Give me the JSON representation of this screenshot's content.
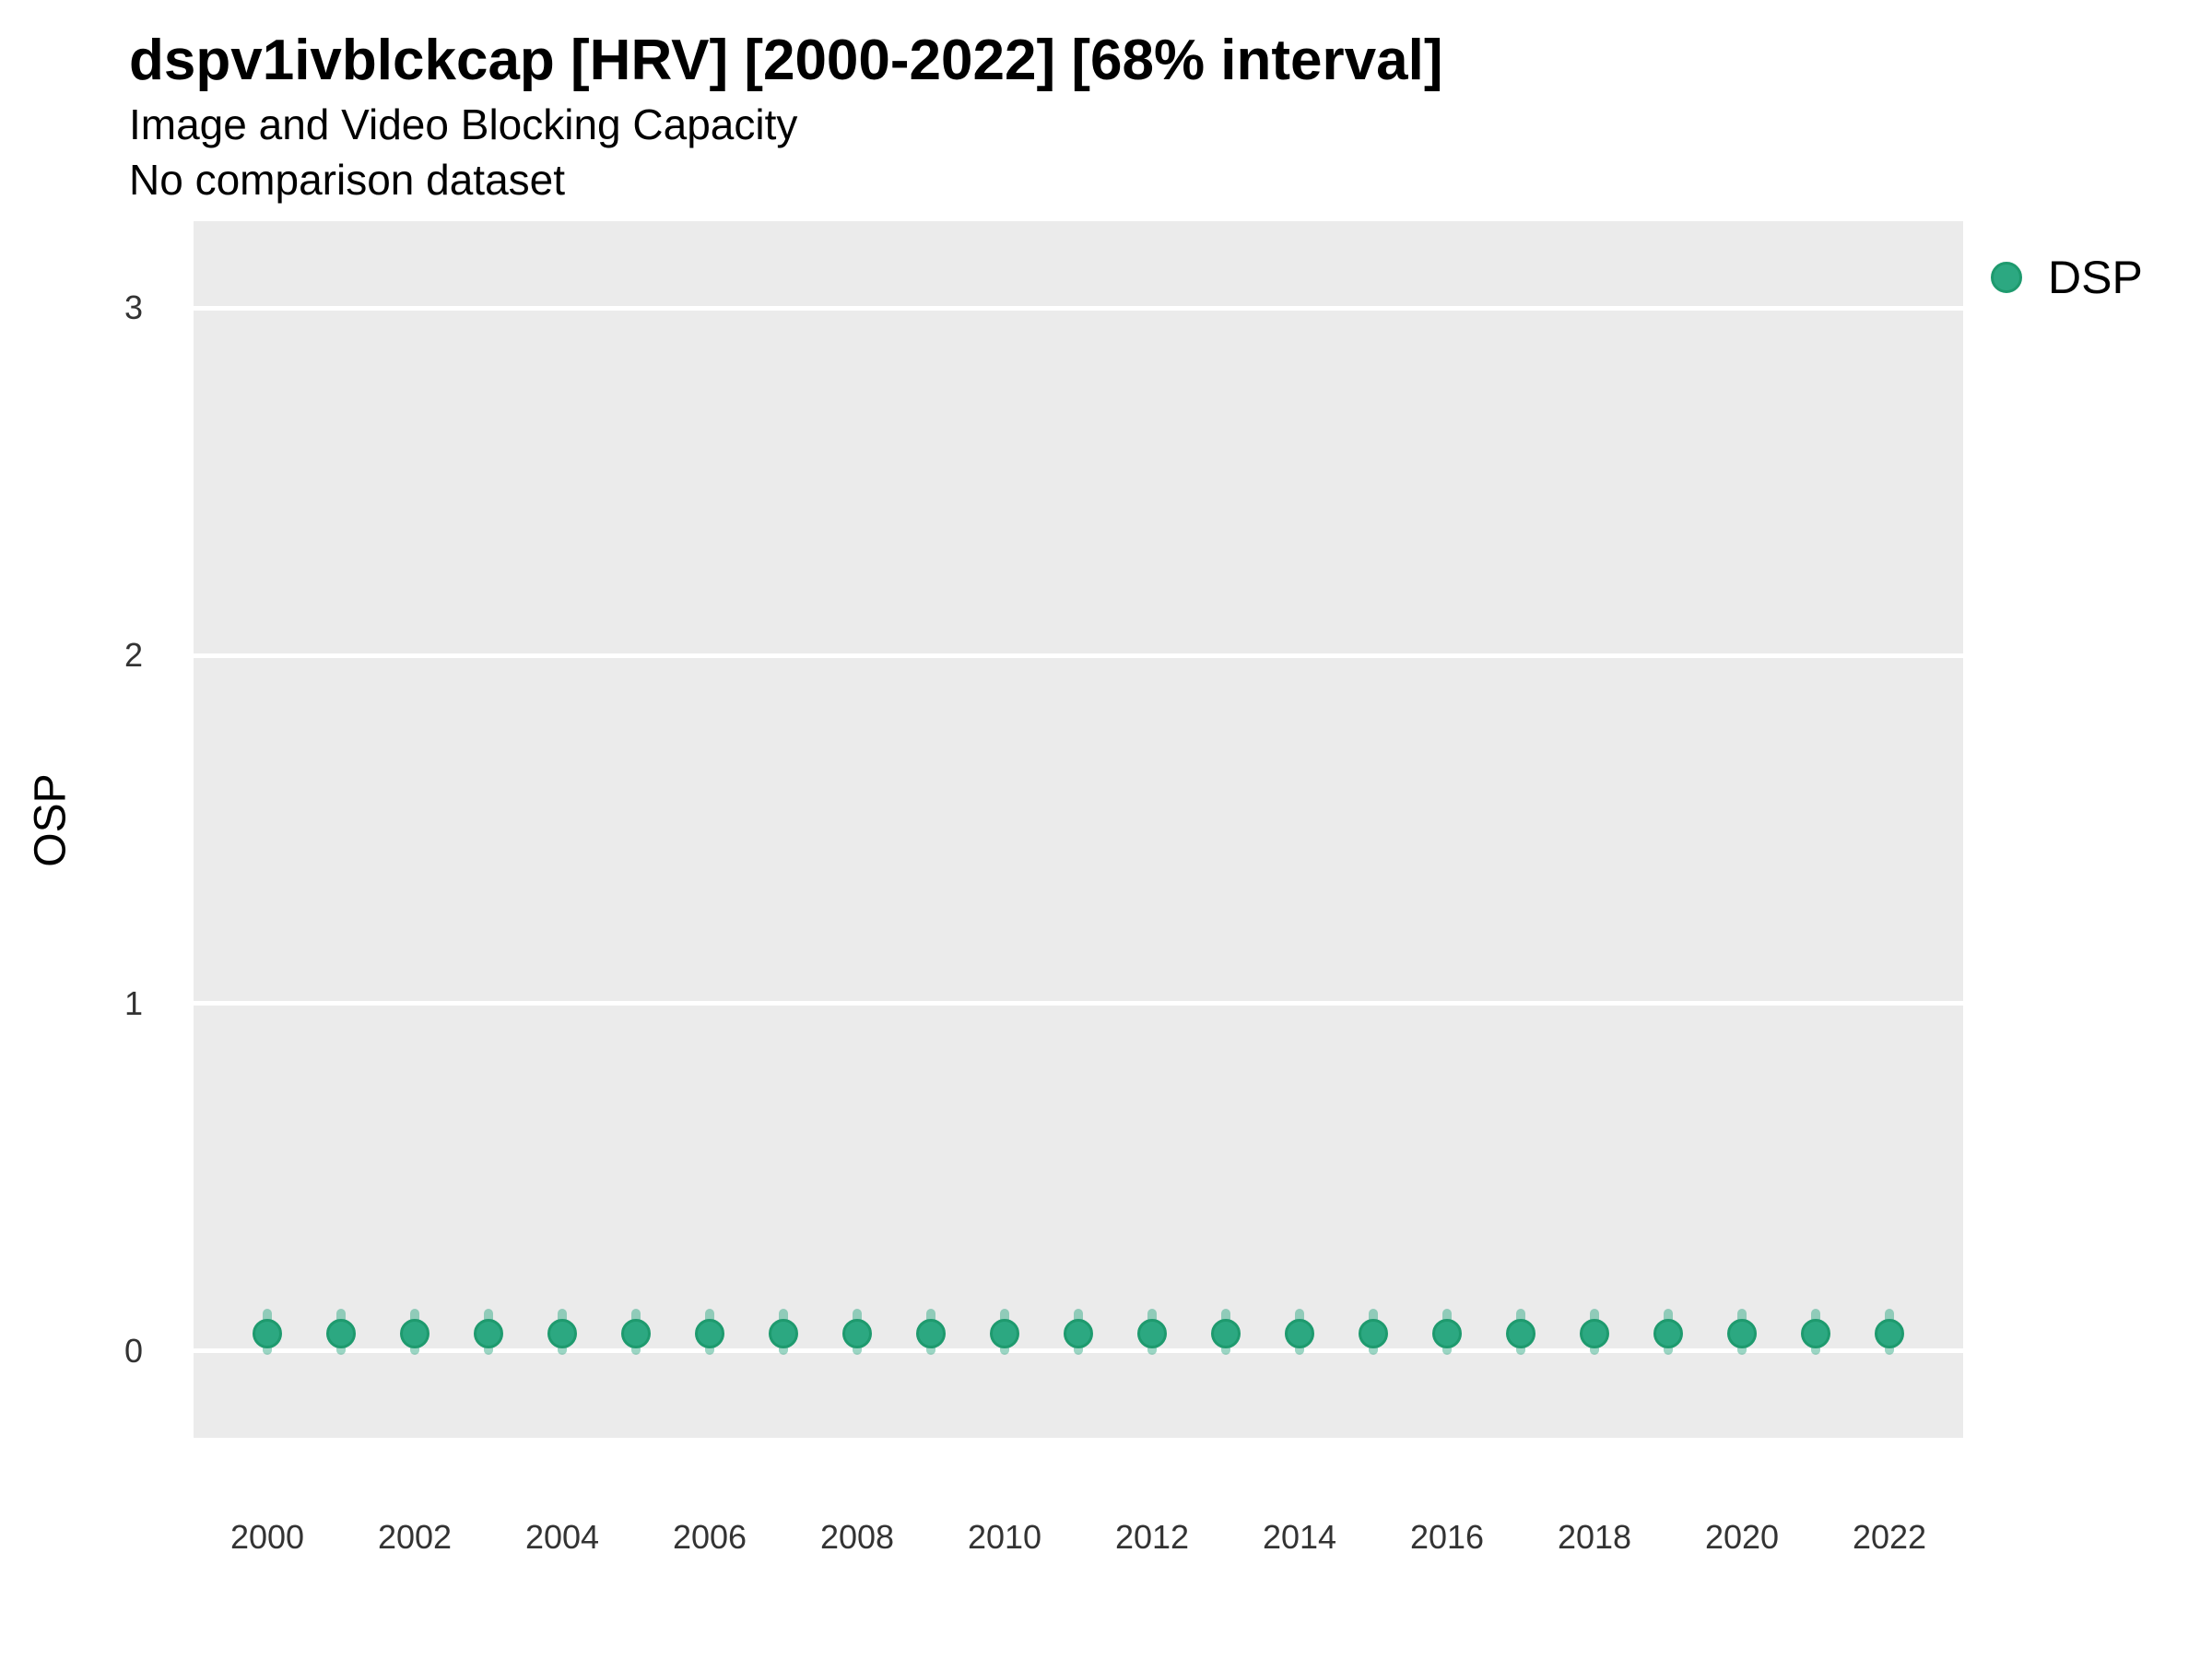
{
  "header": {
    "title": "dspv1ivblckcap [HRV] [2000-2022] [68% interval]",
    "subtitle": "Image and Video Blocking Capacity",
    "note": "No comparison dataset"
  },
  "legend": {
    "position": "right",
    "items": [
      {
        "label": "DSP",
        "marker": "circle",
        "color": "#2CA881"
      }
    ]
  },
  "style": {
    "panel_bg": "#EBEBEB",
    "grid_color": "#FFFFFF",
    "point_fill": "#2CA881",
    "point_stroke": "#1E9A6E",
    "errorbar_color": "rgba(44,168,129,0.48)",
    "tick_text_color": "#333333"
  },
  "chart_data": {
    "type": "scatter",
    "title": "dspv1ivblckcap [HRV] [2000-2022] [68% interval]",
    "subtitle": "Image and Video Blocking Capacity",
    "note": "No comparison dataset",
    "xlabel": "",
    "ylabel": "OSP",
    "interval": "68%",
    "xlim": [
      1999,
      2023
    ],
    "ylim": [
      -0.25,
      3.25
    ],
    "x_ticks": [
      2000,
      2002,
      2004,
      2006,
      2008,
      2010,
      2012,
      2014,
      2016,
      2018,
      2020,
      2022
    ],
    "y_ticks": [
      0,
      1,
      2,
      3
    ],
    "grid": "major horizontal white lines on gray panel",
    "legend_position": "right",
    "series": [
      {
        "name": "DSP",
        "color": "#2CA881",
        "x": [
          2000,
          2001,
          2002,
          2003,
          2004,
          2005,
          2006,
          2007,
          2008,
          2009,
          2010,
          2011,
          2012,
          2013,
          2014,
          2015,
          2016,
          2017,
          2018,
          2019,
          2020,
          2021,
          2022
        ],
        "y": [
          0.05,
          0.05,
          0.05,
          0.05,
          0.05,
          0.05,
          0.05,
          0.05,
          0.05,
          0.05,
          0.05,
          0.05,
          0.05,
          0.05,
          0.05,
          0.05,
          0.05,
          0.05,
          0.05,
          0.05,
          0.05,
          0.05,
          0.05
        ],
        "y_lo": [
          0.0,
          0.0,
          0.0,
          0.0,
          0.0,
          0.0,
          0.0,
          0.0,
          0.0,
          0.0,
          0.0,
          0.0,
          0.0,
          0.0,
          0.0,
          0.0,
          0.0,
          0.0,
          0.0,
          0.0,
          0.0,
          0.0,
          0.0
        ],
        "y_hi": [
          0.11,
          0.11,
          0.11,
          0.11,
          0.11,
          0.11,
          0.11,
          0.11,
          0.11,
          0.11,
          0.11,
          0.11,
          0.11,
          0.11,
          0.11,
          0.11,
          0.11,
          0.11,
          0.11,
          0.11,
          0.11,
          0.11,
          0.11
        ]
      }
    ]
  }
}
